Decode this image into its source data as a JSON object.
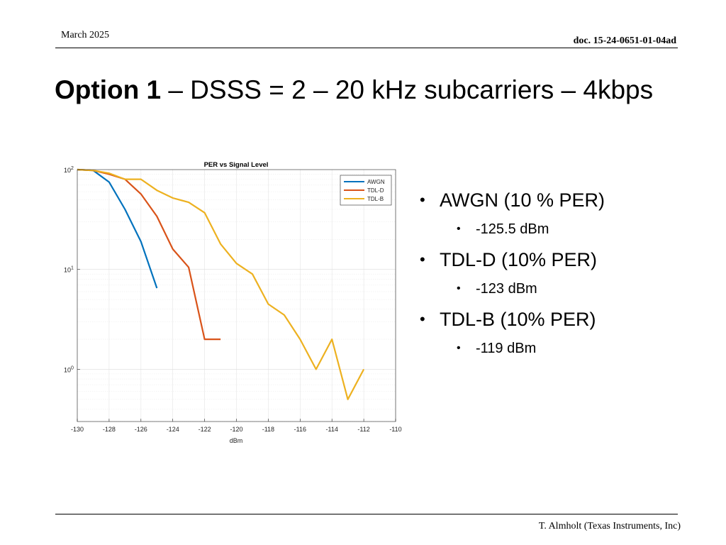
{
  "header": {
    "date": "March 2025",
    "doc_id": "doc. 15-24-0651-01-04ad"
  },
  "slide": {
    "title_bold": "Option 1",
    "title_rest": " – DSSS = 2 – 20 kHz subcarriers – 4kbps"
  },
  "bullets": [
    {
      "label": "AWGN (10 % PER)",
      "sub": "-125.5 dBm"
    },
    {
      "label": "TDL-D (10% PER)",
      "sub": "-123 dBm"
    },
    {
      "label": "TDL-B (10% PER)",
      "sub": "-119 dBm"
    }
  ],
  "footer": {
    "author": "T. Almholt (Texas Instruments, Inc)"
  },
  "chart_data": {
    "type": "line",
    "title": "PER vs Signal Level",
    "xlabel": "dBm",
    "ylabel": "",
    "xlim": [
      -130,
      -110
    ],
    "ylim": [
      0.3,
      100
    ],
    "yscale": "log",
    "grid": true,
    "legend_position": "top-right",
    "x_ticks": [
      "-130",
      "-128",
      "-126",
      "-124",
      "-122",
      "-120",
      "-118",
      "-116",
      "-114",
      "-112",
      "-110"
    ],
    "y_ticks": [
      {
        "base": "10",
        "exp": "0",
        "value": 1
      },
      {
        "base": "10",
        "exp": "1",
        "value": 10
      },
      {
        "base": "10",
        "exp": "2",
        "value": 100
      }
    ],
    "series": [
      {
        "name": "AWGN",
        "color": "#0072BD",
        "x": [
          -130,
          -129,
          -128,
          -127,
          -126,
          -125
        ],
        "y": [
          100,
          98,
          75,
          40,
          19,
          6.5
        ]
      },
      {
        "name": "TDL-D",
        "color": "#D95319",
        "x": [
          -130,
          -129,
          -128,
          -127,
          -126,
          -125,
          -124,
          -123,
          -122,
          -121
        ],
        "y": [
          100,
          98,
          90,
          80,
          57,
          34,
          16,
          10.5,
          2,
          2
        ]
      },
      {
        "name": "TDL-B",
        "color": "#EDB120",
        "x": [
          -130,
          -129,
          -128,
          -127,
          -126,
          -125,
          -124,
          -123,
          -122,
          -121,
          -120,
          -119,
          -118,
          -117,
          -116,
          -115,
          -114,
          -113,
          -112
        ],
        "y": [
          100,
          98,
          92,
          80,
          80,
          62,
          52,
          47,
          37,
          18,
          11.5,
          9,
          4.5,
          3.5,
          2,
          1,
          2,
          0.5,
          1
        ]
      }
    ]
  }
}
